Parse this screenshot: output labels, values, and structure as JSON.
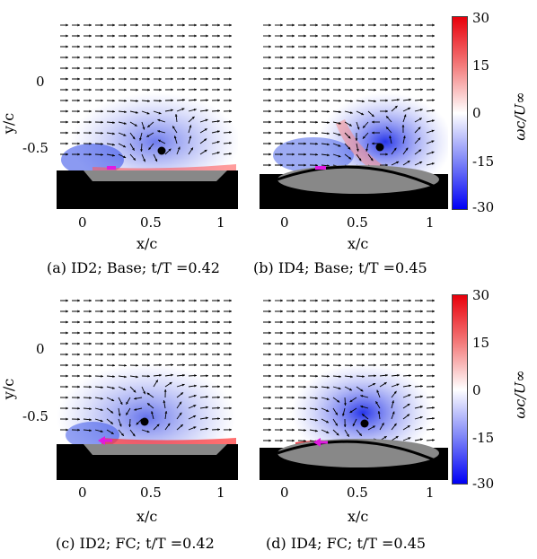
{
  "colorbar": {
    "ticks": [
      "30",
      "15",
      "0",
      "-15",
      "-30"
    ],
    "label": "ωc/U∞",
    "colors": {
      "max": "#e8000b",
      "zero": "#ffffff",
      "min": "#0000f5"
    }
  },
  "axes": {
    "ylabel": "y/c",
    "xlabel": "x/c",
    "yticks": [
      "0",
      "-0.5"
    ],
    "xticks": [
      "0",
      "0.5",
      "1"
    ]
  },
  "panels": [
    {
      "caption": "(a) ID2; Base; t/T =0.42",
      "airfoil": "flat",
      "arrow": "bar"
    },
    {
      "caption": "(b) ID4; Base; t/T =0.45",
      "airfoil": "ellipse",
      "arrow": "bar"
    },
    {
      "caption": "(c) ID2; FC; t/T =0.42",
      "airfoil": "flat",
      "arrow": "left-arrow"
    },
    {
      "caption": "(d) ID4; FC; t/T =0.45",
      "airfoil": "ellipse",
      "arrow": "left-arrow"
    }
  ]
}
